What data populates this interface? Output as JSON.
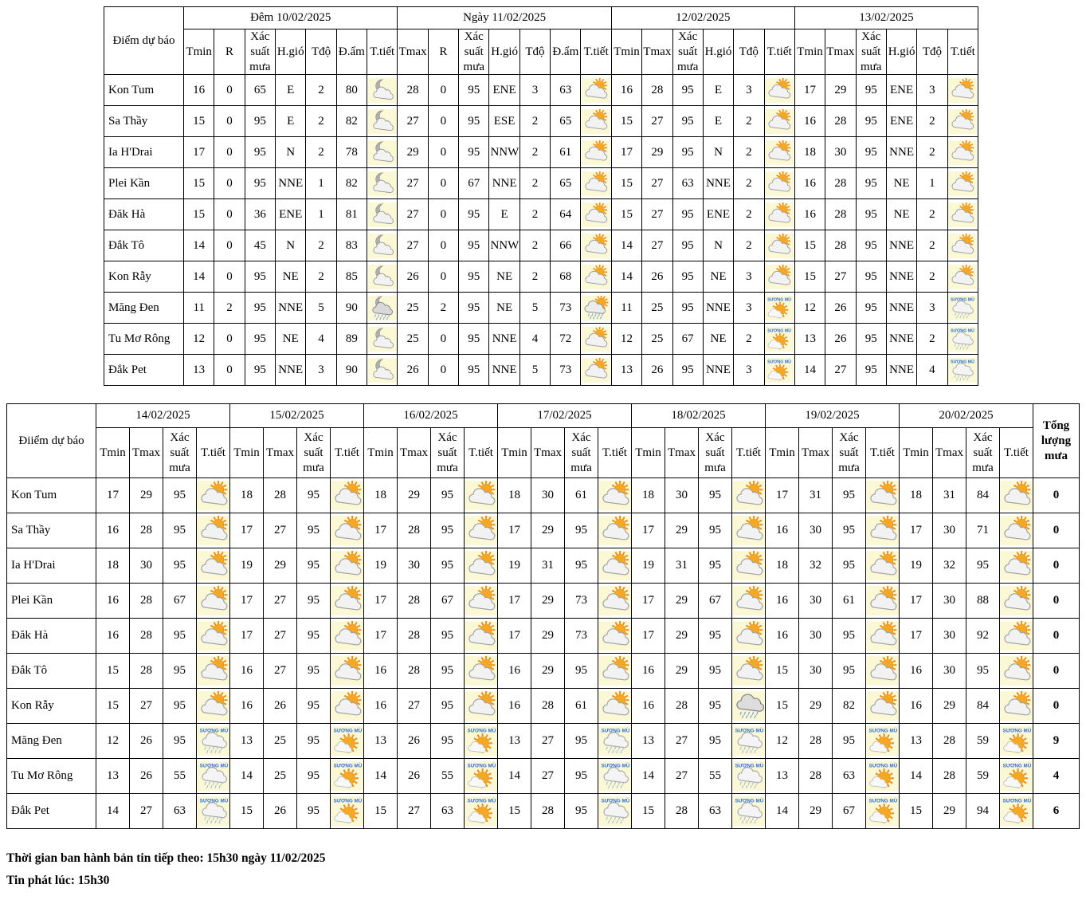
{
  "fog_label": "SƯƠNG MÙ",
  "colors": {
    "border": "#000000",
    "tile_bg": "#FBF8D6",
    "sun": "#F7A823",
    "sun_ray": "#ED8D12",
    "fog_text": "#2F6FDC",
    "rain_blue": "#6E9BD8",
    "drizzle_gray": "#AABDD6"
  },
  "icon_legend": {
    "moon-cloud": "night - cloudy with moon",
    "moon-cloud-rain": "night - cloud, moon and rain",
    "sun-cloud": "sun behind cloud",
    "sun-cloud-rain": "sun, cloud and rain",
    "fog-sun": "fog (SƯƠNG MÙ) with sun and small cloud",
    "fog-rain": "fog (SƯƠNG MÙ) with drizzle cloud",
    "rain": "rain cloud"
  },
  "tables": [
    {
      "corner": "Điểm dự báo",
      "groups": [
        {
          "title": "Đêm 10/02/2025",
          "cols": [
            "Tmin",
            "R",
            "Xác suất mưa",
            "H.gió",
            "Tđộ",
            "Đ.ẩm",
            "T.tiết"
          ]
        },
        {
          "title": "Ngày 11/02/2025",
          "cols": [
            "Tmax",
            "R",
            "Xác suất mưa",
            "H.gió",
            "Tđộ",
            "Đ.ẩm",
            "T.tiết"
          ]
        },
        {
          "title": "12/02/2025",
          "cols": [
            "Tmin",
            "Tmax",
            "Xác suất mưa",
            "H.gió",
            "Tđộ",
            "T.tiết"
          ]
        },
        {
          "title": "13/02/2025",
          "cols": [
            "Tmin",
            "Tmax",
            "Xác suất mưa",
            "H.gió",
            "Tđộ",
            "T.tiết"
          ]
        }
      ],
      "rows": [
        {
          "name": "Kon Tum",
          "cells": [
            "16",
            "0",
            "65",
            "E",
            "2",
            "80",
            "icon:moon-cloud",
            "28",
            "0",
            "95",
            "ENE",
            "3",
            "63",
            "icon:sun-cloud",
            "16",
            "28",
            "95",
            "E",
            "3",
            "icon:sun-cloud",
            "17",
            "29",
            "95",
            "ENE",
            "3",
            "icon:sun-cloud"
          ]
        },
        {
          "name": "Sa Thầy",
          "cells": [
            "15",
            "0",
            "95",
            "E",
            "2",
            "82",
            "icon:moon-cloud",
            "27",
            "0",
            "95",
            "ESE",
            "2",
            "65",
            "icon:sun-cloud",
            "15",
            "27",
            "95",
            "E",
            "2",
            "icon:sun-cloud",
            "16",
            "28",
            "95",
            "ENE",
            "2",
            "icon:sun-cloud"
          ]
        },
        {
          "name": "Ia H'Drai",
          "cells": [
            "17",
            "0",
            "95",
            "N",
            "2",
            "78",
            "icon:moon-cloud",
            "29",
            "0",
            "95",
            "NNW",
            "2",
            "61",
            "icon:sun-cloud",
            "17",
            "29",
            "95",
            "N",
            "2",
            "icon:sun-cloud",
            "18",
            "30",
            "95",
            "NNE",
            "2",
            "icon:sun-cloud"
          ]
        },
        {
          "name": "Plei Kần",
          "cells": [
            "15",
            "0",
            "95",
            "NNE",
            "1",
            "82",
            "icon:moon-cloud",
            "27",
            "0",
            "67",
            "NNE",
            "2",
            "65",
            "icon:sun-cloud",
            "15",
            "27",
            "63",
            "NNE",
            "2",
            "icon:sun-cloud",
            "16",
            "28",
            "95",
            "NE",
            "1",
            "icon:sun-cloud"
          ]
        },
        {
          "name": "Đăk Hà",
          "cells": [
            "15",
            "0",
            "36",
            "ENE",
            "1",
            "81",
            "icon:moon-cloud",
            "27",
            "0",
            "95",
            "E",
            "2",
            "64",
            "icon:sun-cloud",
            "15",
            "27",
            "95",
            "ENE",
            "2",
            "icon:sun-cloud",
            "16",
            "28",
            "95",
            "NE",
            "2",
            "icon:sun-cloud"
          ]
        },
        {
          "name": "Đắk Tô",
          "cells": [
            "14",
            "0",
            "45",
            "N",
            "2",
            "83",
            "icon:moon-cloud",
            "27",
            "0",
            "95",
            "NNW",
            "2",
            "66",
            "icon:sun-cloud",
            "14",
            "27",
            "95",
            "N",
            "2",
            "icon:sun-cloud",
            "15",
            "28",
            "95",
            "NNE",
            "2",
            "icon:sun-cloud"
          ]
        },
        {
          "name": "Kon Rẫy",
          "cells": [
            "14",
            "0",
            "95",
            "NE",
            "2",
            "85",
            "icon:moon-cloud",
            "26",
            "0",
            "95",
            "NE",
            "2",
            "68",
            "icon:sun-cloud",
            "14",
            "26",
            "95",
            "NE",
            "3",
            "icon:sun-cloud",
            "15",
            "27",
            "95",
            "NNE",
            "2",
            "icon:sun-cloud"
          ]
        },
        {
          "name": "Măng Đen",
          "cells": [
            "11",
            "2",
            "95",
            "NNE",
            "5",
            "90",
            "icon:moon-cloud-rain",
            "25",
            "2",
            "95",
            "NE",
            "5",
            "73",
            "icon:sun-cloud-rain",
            "11",
            "25",
            "95",
            "NNE",
            "3",
            "icon:fog-sun",
            "12",
            "26",
            "95",
            "NNE",
            "3",
            "icon:fog-rain"
          ]
        },
        {
          "name": "Tu Mơ Rông",
          "cells": [
            "12",
            "0",
            "95",
            "NE",
            "4",
            "89",
            "icon:moon-cloud",
            "25",
            "0",
            "95",
            "NNE",
            "4",
            "72",
            "icon:sun-cloud",
            "12",
            "25",
            "67",
            "NE",
            "2",
            "icon:fog-sun",
            "13",
            "26",
            "95",
            "NNE",
            "2",
            "icon:fog-rain"
          ]
        },
        {
          "name": "Đắk Pet",
          "cells": [
            "13",
            "0",
            "95",
            "NNE",
            "3",
            "90",
            "icon:moon-cloud",
            "26",
            "0",
            "95",
            "NNE",
            "5",
            "73",
            "icon:sun-cloud",
            "13",
            "26",
            "95",
            "NNE",
            "3",
            "icon:fog-sun",
            "14",
            "27",
            "95",
            "NNE",
            "4",
            "icon:fog-rain"
          ]
        }
      ]
    },
    {
      "corner": "Điiểm dự báo",
      "total_header": "Tổng lượng mưa",
      "groups": [
        {
          "title": "14/02/2025",
          "cols": [
            "Tmin",
            "Tmax",
            "Xác suất mưa",
            "T.tiết"
          ]
        },
        {
          "title": "15/02/2025",
          "cols": [
            "Tmin",
            "Tmax",
            "Xác suất mưa",
            "T.tiết"
          ]
        },
        {
          "title": "16/02/2025",
          "cols": [
            "Tmin",
            "Tmax",
            "Xác suất mưa",
            "T.tiết"
          ]
        },
        {
          "title": "17/02/2025",
          "cols": [
            "Tmin",
            "Tmax",
            "Xác suất mưa",
            "T.tiết"
          ]
        },
        {
          "title": "18/02/2025",
          "cols": [
            "Tmin",
            "Tmax",
            "Xác suất mưa",
            "T.tiết"
          ]
        },
        {
          "title": "19/02/2025",
          "cols": [
            "Tmin",
            "Tmax",
            "Xác suất mưa",
            "T.tiết"
          ]
        },
        {
          "title": "20/02/2025",
          "cols": [
            "Tmin",
            "Tmax",
            "Xác suất mưa",
            "T.tiết"
          ]
        }
      ],
      "rows": [
        {
          "name": "Kon Tum",
          "total": "0",
          "cells": [
            "17",
            "29",
            "95",
            "icon:sun-cloud",
            "18",
            "28",
            "95",
            "icon:sun-cloud",
            "18",
            "29",
            "95",
            "icon:sun-cloud",
            "18",
            "30",
            "61",
            "icon:sun-cloud",
            "18",
            "30",
            "95",
            "icon:sun-cloud",
            "17",
            "31",
            "95",
            "icon:sun-cloud",
            "18",
            "31",
            "84",
            "icon:sun-cloud"
          ]
        },
        {
          "name": "Sa Thầy",
          "total": "0",
          "cells": [
            "16",
            "28",
            "95",
            "icon:sun-cloud",
            "17",
            "27",
            "95",
            "icon:sun-cloud",
            "17",
            "28",
            "95",
            "icon:sun-cloud",
            "17",
            "29",
            "95",
            "icon:sun-cloud",
            "17",
            "29",
            "95",
            "icon:sun-cloud",
            "16",
            "30",
            "95",
            "icon:sun-cloud",
            "17",
            "30",
            "71",
            "icon:sun-cloud"
          ]
        },
        {
          "name": "Ia H'Drai",
          "total": "0",
          "cells": [
            "18",
            "30",
            "95",
            "icon:sun-cloud",
            "19",
            "29",
            "95",
            "icon:sun-cloud",
            "19",
            "30",
            "95",
            "icon:sun-cloud",
            "19",
            "31",
            "95",
            "icon:sun-cloud",
            "19",
            "31",
            "95",
            "icon:sun-cloud",
            "18",
            "32",
            "95",
            "icon:sun-cloud",
            "19",
            "32",
            "95",
            "icon:sun-cloud"
          ]
        },
        {
          "name": "Plei Kần",
          "total": "0",
          "cells": [
            "16",
            "28",
            "67",
            "icon:sun-cloud",
            "17",
            "27",
            "95",
            "icon:sun-cloud",
            "17",
            "28",
            "67",
            "icon:sun-cloud",
            "17",
            "29",
            "73",
            "icon:sun-cloud",
            "17",
            "29",
            "67",
            "icon:sun-cloud",
            "16",
            "30",
            "61",
            "icon:sun-cloud",
            "17",
            "30",
            "88",
            "icon:sun-cloud"
          ]
        },
        {
          "name": "Đăk Hà",
          "total": "0",
          "cells": [
            "16",
            "28",
            "95",
            "icon:sun-cloud",
            "17",
            "27",
            "95",
            "icon:sun-cloud",
            "17",
            "28",
            "95",
            "icon:sun-cloud",
            "17",
            "29",
            "73",
            "icon:sun-cloud",
            "17",
            "29",
            "95",
            "icon:sun-cloud",
            "16",
            "30",
            "95",
            "icon:sun-cloud",
            "17",
            "30",
            "92",
            "icon:sun-cloud"
          ]
        },
        {
          "name": "Đắk Tô",
          "total": "0",
          "cells": [
            "15",
            "28",
            "95",
            "icon:sun-cloud",
            "16",
            "27",
            "95",
            "icon:sun-cloud",
            "16",
            "28",
            "95",
            "icon:sun-cloud",
            "16",
            "29",
            "95",
            "icon:sun-cloud",
            "16",
            "29",
            "95",
            "icon:sun-cloud",
            "15",
            "30",
            "95",
            "icon:sun-cloud",
            "16",
            "30",
            "95",
            "icon:sun-cloud"
          ]
        },
        {
          "name": "Kon Rẫy",
          "total": "0",
          "cells": [
            "15",
            "27",
            "95",
            "icon:sun-cloud",
            "16",
            "26",
            "95",
            "icon:sun-cloud",
            "16",
            "27",
            "95",
            "icon:sun-cloud",
            "16",
            "28",
            "61",
            "icon:sun-cloud",
            "16",
            "28",
            "95",
            "icon:rain",
            "15",
            "29",
            "82",
            "icon:sun-cloud",
            "16",
            "29",
            "84",
            "icon:sun-cloud"
          ]
        },
        {
          "name": "Măng Đen",
          "total": "9",
          "cells": [
            "12",
            "26",
            "95",
            "icon:fog-rain",
            "13",
            "25",
            "95",
            "icon:fog-sun",
            "13",
            "26",
            "95",
            "icon:fog-sun",
            "13",
            "27",
            "95",
            "icon:fog-rain",
            "13",
            "27",
            "95",
            "icon:fog-rain",
            "12",
            "28",
            "95",
            "icon:fog-sun",
            "13",
            "28",
            "59",
            "icon:fog-sun"
          ]
        },
        {
          "name": "Tu Mơ Rông",
          "total": "4",
          "cells": [
            "13",
            "26",
            "55",
            "icon:fog-rain",
            "14",
            "25",
            "95",
            "icon:fog-sun",
            "14",
            "26",
            "55",
            "icon:fog-sun",
            "14",
            "27",
            "95",
            "icon:fog-rain",
            "14",
            "27",
            "55",
            "icon:fog-rain",
            "13",
            "28",
            "63",
            "icon:fog-sun",
            "14",
            "28",
            "59",
            "icon:fog-sun"
          ]
        },
        {
          "name": "Đắk Pet",
          "total": "6",
          "cells": [
            "14",
            "27",
            "63",
            "icon:fog-rain",
            "15",
            "26",
            "95",
            "icon:fog-sun",
            "15",
            "27",
            "63",
            "icon:fog-sun",
            "15",
            "28",
            "95",
            "icon:fog-rain",
            "15",
            "28",
            "63",
            "icon:fog-rain",
            "14",
            "29",
            "67",
            "icon:fog-sun",
            "15",
            "29",
            "94",
            "icon:fog-sun"
          ]
        }
      ]
    }
  ],
  "footer": {
    "line1": "Thời gian ban hành bản tin tiếp theo: 15h30 ngày 11/02/2025",
    "line2": "Tin phát lúc: 15h30"
  }
}
